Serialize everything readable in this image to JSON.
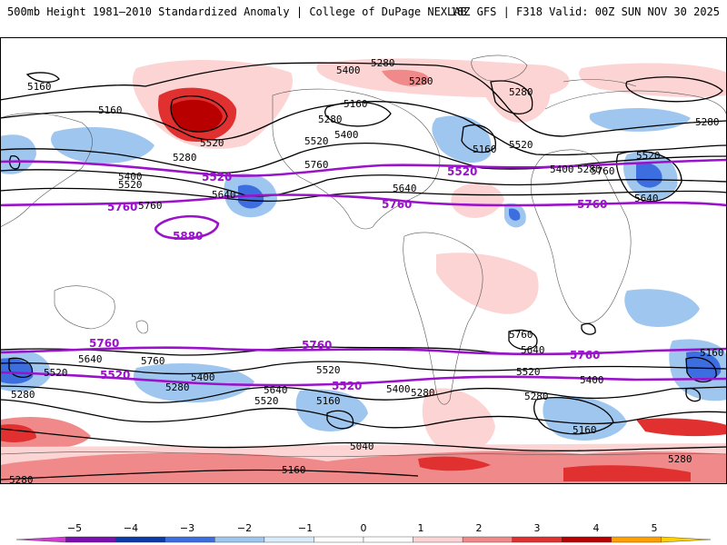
{
  "header": {
    "title": "500mb Height 1981–2010 Standardized Anomaly | College of DuPage NEXLAB",
    "run_info": "18Z GFS | F318 Valid: 00Z SUN NOV 30 2025"
  },
  "map": {
    "contour_labels_black": [
      "5280",
      "5400",
      "5160",
      "5280",
      "5280",
      "5160",
      "5280",
      "5160",
      "5520",
      "5280",
      "5400",
      "5520",
      "5520",
      "5160",
      "5520",
      "5400",
      "5760",
      "5400",
      "5280",
      "5520",
      "5640",
      "5640",
      "5760",
      "5760",
      "5640",
      "5520",
      "5640",
      "5760",
      "5400",
      "5280",
      "5520",
      "5640",
      "5160",
      "5400",
      "5280",
      "5520",
      "5280",
      "5640",
      "5760",
      "5520",
      "5400",
      "5280",
      "5160",
      "5040",
      "5160",
      "5280",
      "5280",
      "5160",
      "5280"
    ],
    "contour_labels_purple": [
      "5520",
      "5760",
      "5520",
      "5760",
      "5760",
      "5880",
      "5760",
      "5760",
      "5760",
      "5520",
      "5520"
    ]
  },
  "colorbar": {
    "tick_labels": [
      "−5",
      "−4",
      "−3",
      "−2",
      "−1",
      "0",
      "1",
      "2",
      "3",
      "4",
      "5"
    ],
    "colors": [
      "#d23cd6",
      "#7a10b0",
      "#0c3aa8",
      "#3c6ee0",
      "#9ec6ee",
      "#d8ecfc",
      "#ffffff",
      "#ffffff",
      "#fcd4d4",
      "#f08a8a",
      "#e03030",
      "#b80000",
      "#ffa000",
      "#ffd000"
    ]
  }
}
